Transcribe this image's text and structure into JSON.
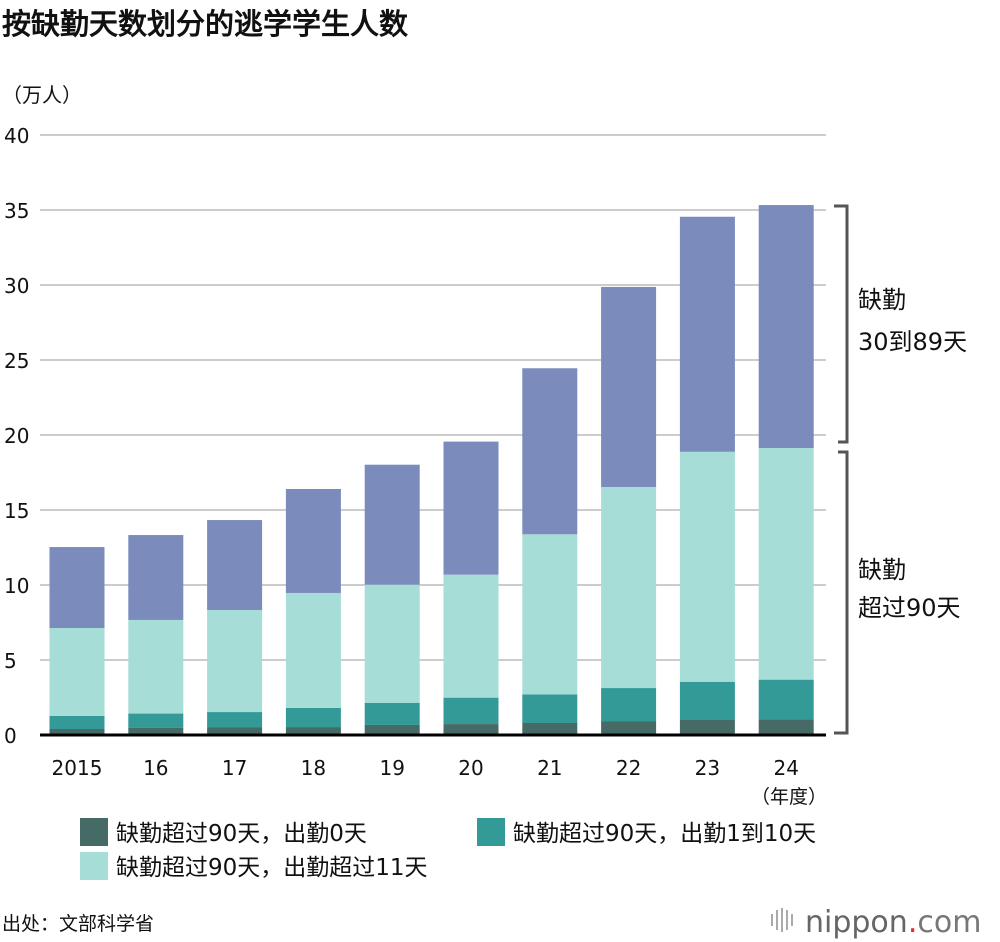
{
  "chart_data": {
    "type": "bar",
    "stacked": true,
    "title": "按缺勤天数划分的逃学学生人数",
    "ylabel": "（万人）",
    "xlabel": "（年度）",
    "ylim": [
      0,
      40
    ],
    "yticks": [
      0,
      5,
      10,
      15,
      20,
      25,
      30,
      35,
      40
    ],
    "grid": true,
    "legend_placement": "bottom",
    "categories": [
      "2015",
      "16",
      "17",
      "18",
      "19",
      "20",
      "21",
      "22",
      "23",
      "24"
    ],
    "series": [
      {
        "name": "缺勤超过90天，出勤0天",
        "color": "#466b66",
        "values": [
          0.4,
          0.47,
          0.5,
          0.53,
          0.67,
          0.73,
          0.8,
          0.9,
          1.0,
          1.03
        ]
      },
      {
        "name": "缺勤超过90天，出勤1到10天",
        "color": "#349a98",
        "values": [
          0.87,
          0.96,
          1.03,
          1.27,
          1.48,
          1.76,
          1.91,
          2.23,
          2.55,
          2.66
        ]
      },
      {
        "name": "缺勤超过90天，出勤超过11天",
        "color": "#a6ded7",
        "values": [
          5.86,
          6.24,
          6.8,
          7.67,
          7.87,
          8.2,
          10.67,
          13.4,
          15.33,
          15.44
        ]
      },
      {
        "name": "缺勤30到89天",
        "color": "#7b8bbb",
        "values": [
          5.4,
          5.66,
          6.0,
          6.93,
          8.0,
          8.87,
          11.07,
          13.34,
          15.67,
          16.2
        ]
      }
    ],
    "annotations": [
      "缺勤\n30到89天",
      "缺勤\n超过90天"
    ]
  },
  "source": "出处：文部科学省",
  "logo": "nippon.com"
}
